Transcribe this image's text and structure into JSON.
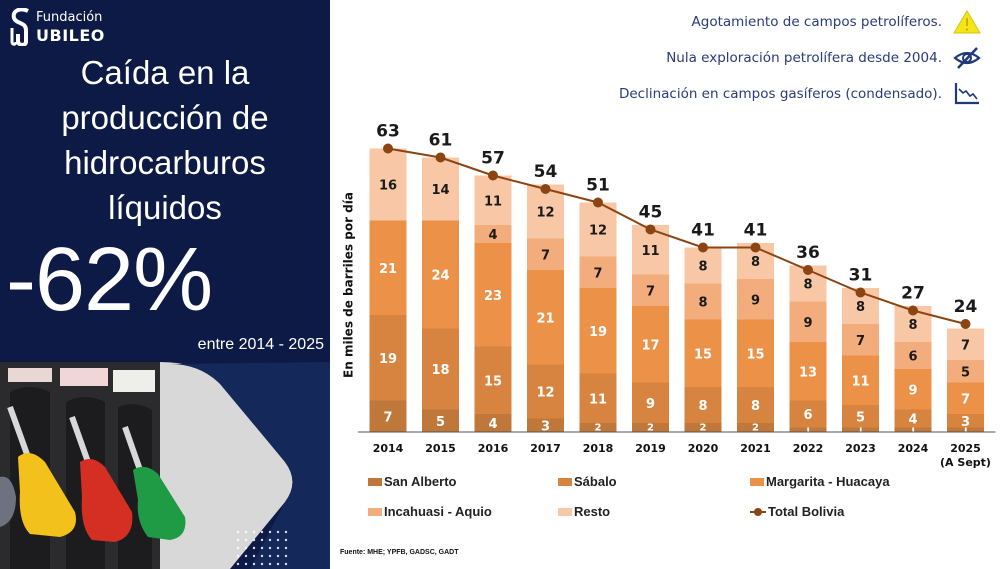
{
  "brand": {
    "line1": "Fundación",
    "line2": "UBILEO"
  },
  "left_panel": {
    "title_lines": [
      "Caída en la",
      "producción de",
      "hidrocarburos",
      "líquidos"
    ],
    "headline_value": "-62%",
    "period": "entre 2014 - 2025"
  },
  "notes": [
    {
      "text": "Agotamiento de campos petrolíferos.",
      "icon": "warning-icon"
    },
    {
      "text": "Nula exploración petrolífera desde 2004.",
      "icon": "eye-slash-icon"
    },
    {
      "text": "Declinación en campos gasíferos (condensado).",
      "icon": "declining-chart-icon"
    }
  ],
  "colors": {
    "San Alberto": "#c0773a",
    "Sábalo": "#d6843f",
    "Margarita - Huacaya": "#ec9148",
    "Incahuasi - Aquio": "#f3ad7c",
    "Resto": "#f8c7a5",
    "Total Bolivia": "#8b4513",
    "panel_bg": "#0c1a45",
    "note_text": "#2a3a7a"
  },
  "chart_data": {
    "type": "bar",
    "stacked": true,
    "title": "",
    "xlabel": "",
    "ylabel": "En miles de barriles por día",
    "ylim": [
      0,
      70
    ],
    "grid": false,
    "legend_position": "bottom",
    "categories": [
      "2014",
      "2015",
      "2016",
      "2017",
      "2018",
      "2019",
      "2020",
      "2021",
      "2022",
      "2023",
      "2024",
      "2025"
    ],
    "category_sublabels": [
      "",
      "",
      "",
      "",
      "",
      "",
      "",
      "",
      "",
      "",
      "",
      "(A Sept)"
    ],
    "series": [
      {
        "name": "San Alberto",
        "values": [
          7,
          5,
          4,
          3,
          2,
          2,
          2,
          2,
          1,
          1,
          1,
          1
        ]
      },
      {
        "name": "Sábalo",
        "values": [
          19,
          18,
          15,
          12,
          11,
          9,
          8,
          8,
          6,
          5,
          4,
          3
        ]
      },
      {
        "name": "Margarita - Huacaya",
        "values": [
          21,
          24,
          23,
          21,
          19,
          17,
          15,
          15,
          13,
          11,
          9,
          7
        ]
      },
      {
        "name": "Incahuasi - Aquio",
        "values": [
          0,
          0,
          4,
          7,
          7,
          7,
          8,
          9,
          9,
          7,
          6,
          5
        ]
      },
      {
        "name": "Resto",
        "values": [
          16,
          14,
          11,
          12,
          12,
          11,
          8,
          8,
          8,
          8,
          8,
          7
        ]
      }
    ],
    "line_series": {
      "name": "Total Bolivia",
      "values": [
        63,
        61,
        57,
        54,
        51,
        45,
        41,
        41,
        36,
        31,
        27,
        24
      ]
    }
  },
  "legend": [
    "San Alberto",
    "Sábalo",
    "Margarita - Huacaya",
    "Incahuasi - Aquio",
    "Resto",
    "Total Bolivia"
  ],
  "source": "Fuente: MHE; YPFB, GADSC, GADT"
}
